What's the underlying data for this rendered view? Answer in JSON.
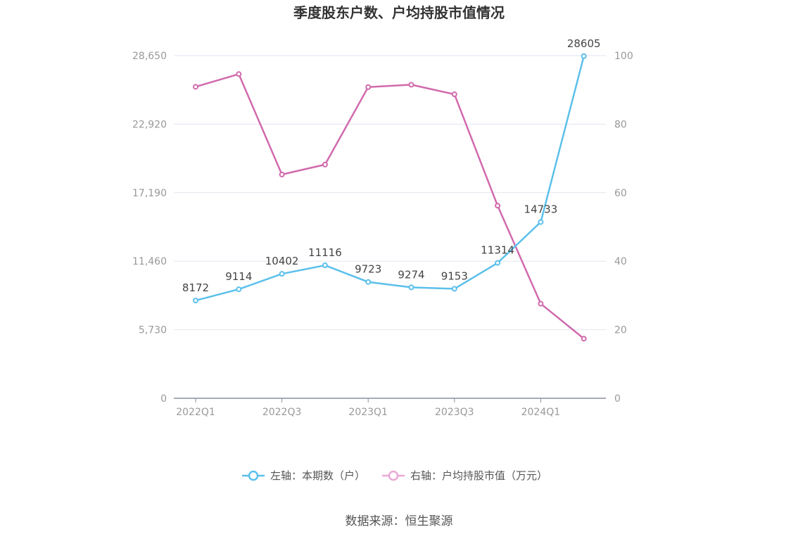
{
  "chart_data": {
    "type": "line",
    "title": "季度股东户数、户均持股市值情况",
    "categories": [
      "2022Q1",
      "2022Q2",
      "2022Q3",
      "2022Q4",
      "2023Q1",
      "2023Q2",
      "2023Q3",
      "2023Q4",
      "2024Q1",
      "2024Q2"
    ],
    "x_tick_labels": [
      "2022Q1",
      "2022Q3",
      "2023Q1",
      "2023Q3",
      "2024Q1"
    ],
    "left_axis": {
      "ticks": [
        "0",
        "5,730",
        "11,460",
        "17,190",
        "22,920",
        "28,650"
      ],
      "ylim": [
        0,
        28650
      ]
    },
    "right_axis": {
      "ticks": [
        "0",
        "20",
        "40",
        "60",
        "80",
        "100"
      ],
      "ylim": [
        0,
        100
      ]
    },
    "series": [
      {
        "name": "左轴：本期数（户）",
        "axis": "left",
        "color": "#5bc0eb",
        "values": [
          8172,
          9114,
          10402,
          11116,
          9723,
          9274,
          9153,
          11314,
          14733,
          28605
        ],
        "labels": [
          "8172",
          "9114",
          "10402",
          "11116",
          "9723",
          "9274",
          "9153",
          "11314",
          "14733",
          "28605"
        ]
      },
      {
        "name": "右轴：户均持股市值（万元）",
        "axis": "right",
        "color": "#d16aad",
        "values": [
          90.9,
          94.6,
          65.3,
          68.2,
          90.8,
          91.5,
          88.7,
          56.2,
          27.6,
          17.4
        ]
      }
    ],
    "legend_position": "bottom",
    "grid": true
  },
  "footer": {
    "source": "数据来源：恒生聚源"
  }
}
